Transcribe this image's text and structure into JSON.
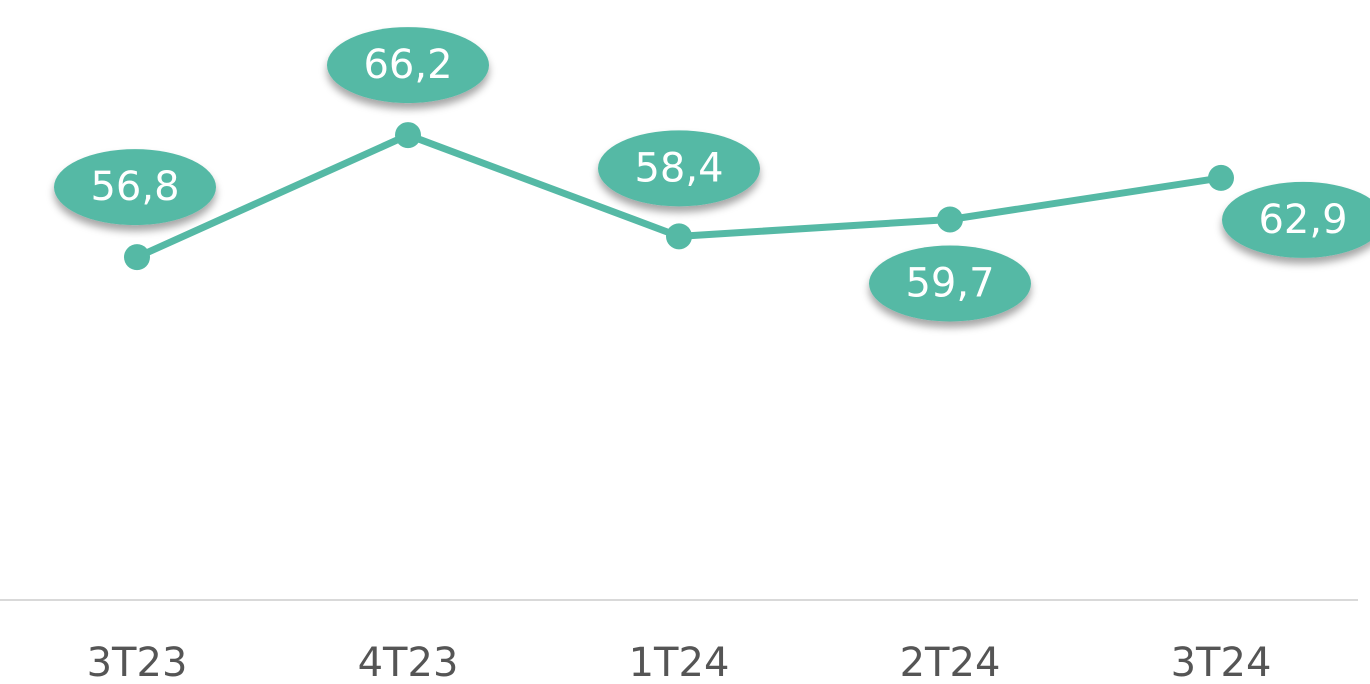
{
  "chart_data": {
    "type": "line",
    "categories": [
      "3T23",
      "4T23",
      "1T24",
      "2T24",
      "3T24"
    ],
    "series": [
      {
        "color": "#55b9a5",
        "values": [
          56.8,
          66.2,
          58.4,
          59.7,
          62.9
        ],
        "value_labels": [
          "56,8",
          "66,2",
          "58,4",
          "59,7",
          "62,9"
        ]
      }
    ],
    "ylim": [
      30.4,
      76.6
    ]
  }
}
